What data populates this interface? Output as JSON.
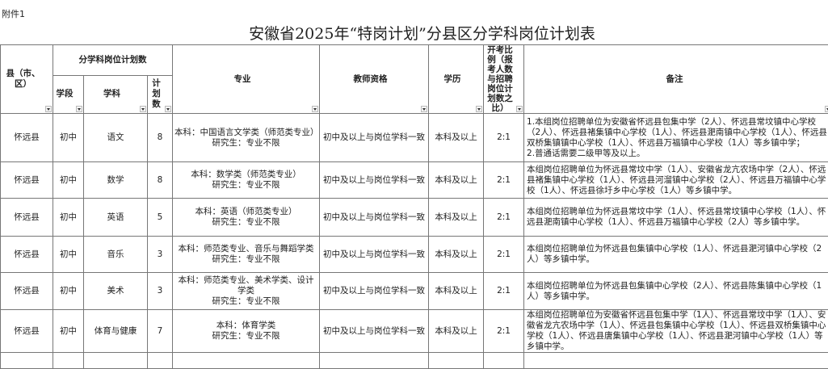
{
  "attachment": "附件1",
  "title": "安徽省2025年“特岗计划”分县区分学科岗位计划表",
  "headers": {
    "county": "县（市、区）",
    "plan_group": "分学科岗位计划数",
    "stage": "学段",
    "subject": "学科",
    "count": "计划数",
    "major": "专业",
    "qualification": "教师资格",
    "education": "学历",
    "ratio": "开考比例（报考人数与招聘岗位计划数之比）",
    "remarks": "备注"
  },
  "rows": [
    {
      "county": "怀远县",
      "stage": "初中",
      "subject": "语文",
      "count": "8",
      "major": [
        "本科：中国语言文学类（师范类专业）",
        "研究生：专业不限"
      ],
      "qualification": "初中及以上与岗位学科一致",
      "education": "本科及以上",
      "ratio": "2:1",
      "remarks": [
        "1.本组岗位招聘单位为安徽省怀远县包集中学（2人）、怀远县常坟镇中心学校（2人）、怀远县褚集镇中心学校（1人）、怀远县淝南镇中心学校（1人）、怀远县双桥集镇镇中心学校（1人）、怀远县万福镇中心学校（1人）等乡镇中学；",
        "2.普通话需要二级甲等及以上。"
      ]
    },
    {
      "county": "怀远县",
      "stage": "初中",
      "subject": "数学",
      "count": "8",
      "major": [
        "本科：数学类（师范类专业）",
        "研究生：专业不限"
      ],
      "qualification": "初中及以上与岗位学科一致",
      "education": "本科及以上",
      "ratio": "2:1",
      "remarks": [
        "本组岗位招聘单位为怀远县常坟中学（1人）、安徽省龙亢农场中学（2人）、怀远县褚集镇中心学校（1人）、怀远县河溜镇中心学校（2人）、怀远县万福镇中心学校（1人）、怀远县徐圩乡中心学校（1人）等乡镇中学。"
      ]
    },
    {
      "county": "怀远县",
      "stage": "初中",
      "subject": "英语",
      "count": "5",
      "major": [
        "本科：英语（师范类专业）",
        "研究生：专业不限"
      ],
      "qualification": "初中及以上与岗位学科一致",
      "education": "本科及以上",
      "ratio": "2:1",
      "remarks": [
        "本组岗位招聘单位为怀远县常坟中学（1人）、怀远县常坟镇中心学校（1人）、怀远县淝南镇中心学校（1人）、怀远县万福镇中心学校（2人）等乡镇中学。"
      ]
    },
    {
      "county": "怀远县",
      "stage": "初中",
      "subject": "音乐",
      "count": "3",
      "major": [
        "本科：师范类专业、音乐与舞蹈学类",
        "研究生：专业不限"
      ],
      "qualification": "初中及以上与岗位学科一致",
      "education": "本科及以上",
      "ratio": "2:1",
      "remarks": [
        "本组岗位招聘单位为怀远县包集镇中心学校（1人）、怀远县淝河镇中心学校（2人）等乡镇中学。"
      ]
    },
    {
      "county": "怀远县",
      "stage": "初中",
      "subject": "美术",
      "count": "3",
      "major": [
        "本科：师范类专业、美术学类、设计学类",
        "研究生：专业不限"
      ],
      "qualification": "初中及以上与岗位学科一致",
      "education": "本科及以上",
      "ratio": "2:1",
      "remarks": [
        "本组岗位招聘单位为怀远县包集镇中心学校（2人）、怀远县陈集镇中心学校（1人）等乡镇中学。"
      ]
    },
    {
      "county": "怀远县",
      "stage": "初中",
      "subject": "体育与健康",
      "count": "7",
      "major": [
        "本科：体育学类",
        "研究生：专业不限"
      ],
      "qualification": "初中及以上与岗位学科一致",
      "education": "本科及以上",
      "ratio": "2:1",
      "remarks": [
        "本组岗位招聘单位为安徽省怀远县包集中学（1人）、怀远县常坟中学（1人）、安徽省龙亢农场中学（1人）、怀远县包集镇中心学校（1人）、怀远县双桥集镇中心学校（1人）、怀远县唐集镇中心学校（1人）、怀远县淝河镇中心学校（1人）等乡镇中学。"
      ]
    }
  ]
}
